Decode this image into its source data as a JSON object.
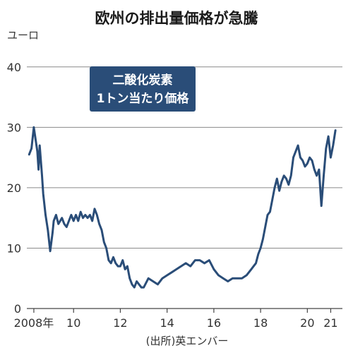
{
  "chart_data": {
    "type": "line",
    "title": "欧州の排出量価格が急騰",
    "ylabel": "ユーロ",
    "annotation": [
      "二酸化炭素",
      "1トン当たり価格"
    ],
    "source": "(出所)英エンバー",
    "ylim": [
      0,
      45
    ],
    "yticks": [
      0,
      10,
      20,
      30,
      40
    ],
    "xlim": [
      2008.0,
      2021.5
    ],
    "xticks": [
      {
        "value": 2008.3,
        "label": "2008年"
      },
      {
        "value": 2010.0,
        "label": "10"
      },
      {
        "value": 2012.0,
        "label": "12"
      },
      {
        "value": 2014.0,
        "label": "14"
      },
      {
        "value": 2016.0,
        "label": "16"
      },
      {
        "value": 2018.0,
        "label": "18"
      },
      {
        "value": 2020.0,
        "label": "20"
      },
      {
        "value": 2021.0,
        "label": "21"
      }
    ],
    "grid": true,
    "series": [
      {
        "color": "#2a4d78",
        "x": [
          2008.1,
          2008.2,
          2008.3,
          2008.45,
          2008.5,
          2008.55,
          2008.65,
          2008.7,
          2008.8,
          2008.9,
          2009.0,
          2009.1,
          2009.15,
          2009.25,
          2009.35,
          2009.5,
          2009.6,
          2009.7,
          2009.8,
          2009.9,
          2010.0,
          2010.1,
          2010.2,
          2010.3,
          2010.4,
          2010.5,
          2010.6,
          2010.7,
          2010.8,
          2010.9,
          2011.0,
          2011.1,
          2011.2,
          2011.3,
          2011.4,
          2011.5,
          2011.6,
          2011.7,
          2011.8,
          2011.9,
          2012.0,
          2012.1,
          2012.2,
          2012.3,
          2012.4,
          2012.5,
          2012.6,
          2012.7,
          2012.8,
          2012.9,
          2013.0,
          2013.2,
          2013.4,
          2013.6,
          2013.8,
          2014.0,
          2014.2,
          2014.4,
          2014.6,
          2014.8,
          2015.0,
          2015.2,
          2015.4,
          2015.6,
          2015.8,
          2016.0,
          2016.2,
          2016.4,
          2016.6,
          2016.8,
          2017.0,
          2017.2,
          2017.4,
          2017.6,
          2017.7,
          2017.8,
          2017.9,
          2018.0,
          2018.1,
          2018.2,
          2018.3,
          2018.4,
          2018.5,
          2018.6,
          2018.7,
          2018.8,
          2018.9,
          2019.0,
          2019.1,
          2019.2,
          2019.3,
          2019.4,
          2019.5,
          2019.6,
          2019.7,
          2019.8,
          2019.9,
          2020.0,
          2020.1,
          2020.2,
          2020.3,
          2020.4,
          2020.5,
          2020.6,
          2020.7,
          2020.8,
          2020.9,
          2021.0,
          2021.1,
          2021.2
        ],
        "y": [
          25.5,
          26.5,
          30.0,
          26.0,
          23.0,
          27.0,
          22.0,
          19.0,
          15.5,
          13.0,
          9.5,
          12.5,
          14.5,
          15.5,
          14.0,
          15.0,
          14.0,
          13.5,
          14.5,
          15.5,
          14.5,
          15.5,
          14.5,
          16.0,
          15.0,
          15.5,
          15.0,
          15.5,
          14.5,
          16.5,
          15.5,
          14.0,
          13.0,
          11.0,
          10.0,
          8.0,
          7.5,
          8.5,
          7.5,
          7.0,
          7.0,
          8.0,
          6.5,
          7.0,
          5.0,
          4.0,
          3.5,
          4.5,
          4.0,
          3.5,
          3.5,
          5.0,
          4.5,
          4.0,
          5.0,
          5.5,
          6.0,
          6.5,
          7.0,
          7.5,
          7.0,
          8.0,
          8.0,
          7.5,
          8.0,
          6.5,
          5.5,
          5.0,
          4.5,
          5.0,
          5.0,
          5.0,
          5.5,
          6.5,
          7.0,
          7.5,
          9.0,
          10.0,
          11.5,
          13.5,
          15.5,
          16.0,
          18.0,
          20.0,
          21.5,
          19.5,
          21.0,
          22.0,
          21.5,
          20.5,
          22.0,
          25.0,
          26.0,
          27.0,
          25.0,
          24.5,
          23.5,
          24.0,
          25.0,
          24.5,
          23.0,
          22.0,
          23.0,
          17.0,
          22.0,
          26.5,
          28.5,
          25.0,
          27.0,
          29.5
        ]
      }
    ]
  }
}
